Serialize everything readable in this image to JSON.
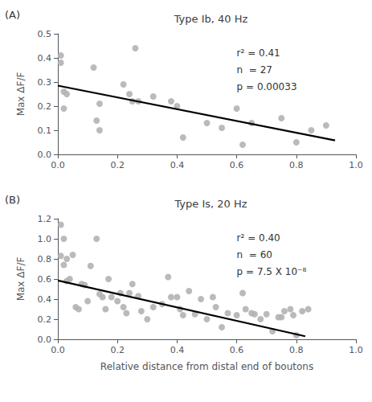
{
  "chart_data": [
    {
      "type": "scatter",
      "title": "Type Ib, 40 Hz",
      "panel_label": "(A)",
      "ylabel": "Max ΔF/F",
      "xlim": [
        0,
        1.0
      ],
      "xticks": [
        {
          "value": 0,
          "label": "0.0"
        },
        0.2,
        0.4,
        0.6,
        0.8,
        {
          "value": 1.0,
          "label": "1.0"
        }
      ],
      "ylim": [
        0,
        0.5
      ],
      "yticks": [
        {
          "value": 0,
          "label": "0.0"
        },
        0.1,
        0.2,
        0.3,
        0.4,
        0.5
      ],
      "grid": false,
      "annotations": [
        "r² = 0.41",
        "n  = 27",
        "p = 0.00033"
      ],
      "series": [
        {
          "type": "scatter",
          "color": "#b2b2b2",
          "x": [
            0.01,
            0.01,
            0.02,
            0.02,
            0.03,
            0.12,
            0.13,
            0.14,
            0.14,
            0.22,
            0.24,
            0.25,
            0.26,
            0.27,
            0.32,
            0.38,
            0.4,
            0.42,
            0.5,
            0.55,
            0.6,
            0.62,
            0.65,
            0.75,
            0.8,
            0.85,
            0.9
          ],
          "values": [
            0.41,
            0.38,
            0.26,
            0.19,
            0.25,
            0.36,
            0.14,
            0.21,
            0.1,
            0.29,
            0.25,
            0.22,
            0.44,
            0.22,
            0.24,
            0.22,
            0.2,
            0.07,
            0.13,
            0.11,
            0.19,
            0.04,
            0.13,
            0.15,
            0.05,
            0.1,
            0.12
          ]
        },
        {
          "type": "line",
          "color": "#000000",
          "x": [
            0.0,
            0.93
          ],
          "values": [
            0.285,
            0.058
          ]
        }
      ]
    },
    {
      "type": "scatter",
      "title": "Type Is, 20 Hz",
      "panel_label": "(B)",
      "ylabel": "Max ΔF/F",
      "xlabel": "Relative distance from distal end of boutons",
      "xlim": [
        0,
        1.0
      ],
      "xticks": [
        {
          "value": 0,
          "label": "0.0"
        },
        0.2,
        0.4,
        0.6,
        0.8,
        {
          "value": 1.0,
          "label": "1.0"
        }
      ],
      "ylim": [
        0,
        1.2
      ],
      "yticks": [
        {
          "value": 0,
          "label": "0.0"
        },
        0.2,
        0.4,
        0.6,
        0.8,
        {
          "value": 1.0,
          "label": "1.0"
        },
        1.2
      ],
      "grid": false,
      "annotations": [
        "r² = 0.40",
        "n  = 60",
        "p = 7.5 X 10⁻⁸"
      ],
      "series": [
        {
          "type": "scatter",
          "color": "#b2b2b2",
          "x": [
            0.01,
            0.01,
            0.02,
            0.02,
            0.03,
            0.03,
            0.04,
            0.05,
            0.06,
            0.07,
            0.08,
            0.09,
            0.1,
            0.11,
            0.13,
            0.14,
            0.15,
            0.16,
            0.17,
            0.18,
            0.2,
            0.21,
            0.22,
            0.23,
            0.24,
            0.25,
            0.27,
            0.28,
            0.3,
            0.32,
            0.35,
            0.37,
            0.38,
            0.4,
            0.41,
            0.42,
            0.44,
            0.46,
            0.48,
            0.5,
            0.52,
            0.53,
            0.55,
            0.57,
            0.6,
            0.62,
            0.63,
            0.65,
            0.66,
            0.68,
            0.7,
            0.72,
            0.74,
            0.75,
            0.76,
            0.78,
            0.79,
            0.8,
            0.82,
            0.84
          ],
          "values": [
            1.14,
            0.83,
            0.74,
            1.0,
            0.8,
            0.58,
            0.6,
            0.84,
            0.32,
            0.3,
            0.55,
            0.54,
            0.38,
            0.73,
            1.0,
            0.45,
            0.42,
            0.3,
            0.6,
            0.42,
            0.38,
            0.46,
            0.32,
            0.26,
            0.46,
            0.55,
            0.43,
            0.28,
            0.2,
            0.32,
            0.35,
            0.62,
            0.42,
            0.42,
            0.3,
            0.24,
            0.48,
            0.25,
            0.4,
            0.2,
            0.42,
            0.32,
            0.12,
            0.26,
            0.24,
            0.46,
            0.3,
            0.26,
            0.25,
            0.2,
            0.25,
            0.08,
            0.22,
            0.22,
            0.28,
            0.3,
            0.24,
            0.04,
            0.28,
            0.3
          ]
        },
        {
          "type": "line",
          "color": "#000000",
          "x": [
            0.0,
            0.83
          ],
          "values": [
            0.585,
            0.03
          ]
        }
      ]
    }
  ]
}
